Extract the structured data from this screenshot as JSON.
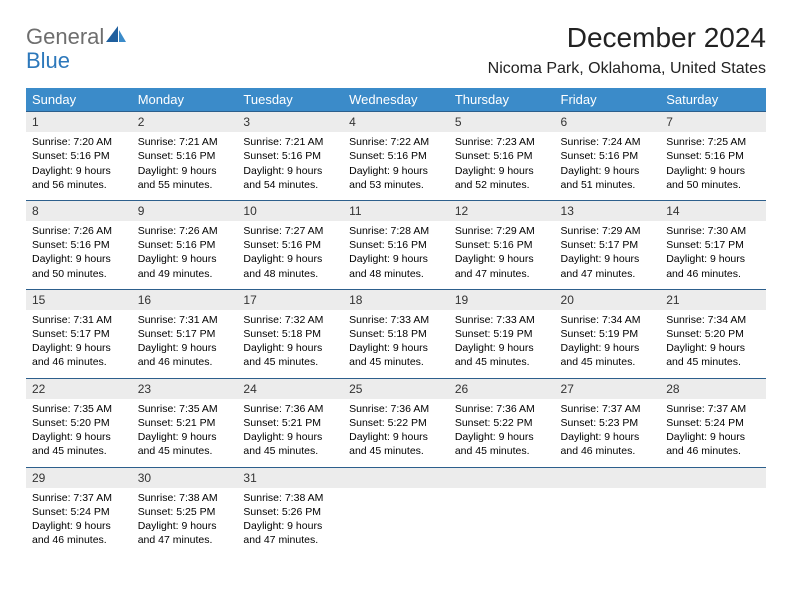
{
  "brand": {
    "part1": "General",
    "part2": "Blue"
  },
  "title": "December 2024",
  "location": "Nicoma Park, Oklahoma, United States",
  "colors": {
    "header_bg": "#3b8bc9",
    "row_rule": "#2d5f8c",
    "daynum_bg": "#ececec",
    "logo_gray": "#6e6e6e",
    "logo_blue": "#2d78bb"
  },
  "weekdays": [
    "Sunday",
    "Monday",
    "Tuesday",
    "Wednesday",
    "Thursday",
    "Friday",
    "Saturday"
  ],
  "weeks": [
    [
      {
        "n": "1",
        "sr": "Sunrise: 7:20 AM",
        "ss": "Sunset: 5:16 PM",
        "d1": "Daylight: 9 hours",
        "d2": "and 56 minutes."
      },
      {
        "n": "2",
        "sr": "Sunrise: 7:21 AM",
        "ss": "Sunset: 5:16 PM",
        "d1": "Daylight: 9 hours",
        "d2": "and 55 minutes."
      },
      {
        "n": "3",
        "sr": "Sunrise: 7:21 AM",
        "ss": "Sunset: 5:16 PM",
        "d1": "Daylight: 9 hours",
        "d2": "and 54 minutes."
      },
      {
        "n": "4",
        "sr": "Sunrise: 7:22 AM",
        "ss": "Sunset: 5:16 PM",
        "d1": "Daylight: 9 hours",
        "d2": "and 53 minutes."
      },
      {
        "n": "5",
        "sr": "Sunrise: 7:23 AM",
        "ss": "Sunset: 5:16 PM",
        "d1": "Daylight: 9 hours",
        "d2": "and 52 minutes."
      },
      {
        "n": "6",
        "sr": "Sunrise: 7:24 AM",
        "ss": "Sunset: 5:16 PM",
        "d1": "Daylight: 9 hours",
        "d2": "and 51 minutes."
      },
      {
        "n": "7",
        "sr": "Sunrise: 7:25 AM",
        "ss": "Sunset: 5:16 PM",
        "d1": "Daylight: 9 hours",
        "d2": "and 50 minutes."
      }
    ],
    [
      {
        "n": "8",
        "sr": "Sunrise: 7:26 AM",
        "ss": "Sunset: 5:16 PM",
        "d1": "Daylight: 9 hours",
        "d2": "and 50 minutes."
      },
      {
        "n": "9",
        "sr": "Sunrise: 7:26 AM",
        "ss": "Sunset: 5:16 PM",
        "d1": "Daylight: 9 hours",
        "d2": "and 49 minutes."
      },
      {
        "n": "10",
        "sr": "Sunrise: 7:27 AM",
        "ss": "Sunset: 5:16 PM",
        "d1": "Daylight: 9 hours",
        "d2": "and 48 minutes."
      },
      {
        "n": "11",
        "sr": "Sunrise: 7:28 AM",
        "ss": "Sunset: 5:16 PM",
        "d1": "Daylight: 9 hours",
        "d2": "and 48 minutes."
      },
      {
        "n": "12",
        "sr": "Sunrise: 7:29 AM",
        "ss": "Sunset: 5:16 PM",
        "d1": "Daylight: 9 hours",
        "d2": "and 47 minutes."
      },
      {
        "n": "13",
        "sr": "Sunrise: 7:29 AM",
        "ss": "Sunset: 5:17 PM",
        "d1": "Daylight: 9 hours",
        "d2": "and 47 minutes."
      },
      {
        "n": "14",
        "sr": "Sunrise: 7:30 AM",
        "ss": "Sunset: 5:17 PM",
        "d1": "Daylight: 9 hours",
        "d2": "and 46 minutes."
      }
    ],
    [
      {
        "n": "15",
        "sr": "Sunrise: 7:31 AM",
        "ss": "Sunset: 5:17 PM",
        "d1": "Daylight: 9 hours",
        "d2": "and 46 minutes."
      },
      {
        "n": "16",
        "sr": "Sunrise: 7:31 AM",
        "ss": "Sunset: 5:17 PM",
        "d1": "Daylight: 9 hours",
        "d2": "and 46 minutes."
      },
      {
        "n": "17",
        "sr": "Sunrise: 7:32 AM",
        "ss": "Sunset: 5:18 PM",
        "d1": "Daylight: 9 hours",
        "d2": "and 45 minutes."
      },
      {
        "n": "18",
        "sr": "Sunrise: 7:33 AM",
        "ss": "Sunset: 5:18 PM",
        "d1": "Daylight: 9 hours",
        "d2": "and 45 minutes."
      },
      {
        "n": "19",
        "sr": "Sunrise: 7:33 AM",
        "ss": "Sunset: 5:19 PM",
        "d1": "Daylight: 9 hours",
        "d2": "and 45 minutes."
      },
      {
        "n": "20",
        "sr": "Sunrise: 7:34 AM",
        "ss": "Sunset: 5:19 PM",
        "d1": "Daylight: 9 hours",
        "d2": "and 45 minutes."
      },
      {
        "n": "21",
        "sr": "Sunrise: 7:34 AM",
        "ss": "Sunset: 5:20 PM",
        "d1": "Daylight: 9 hours",
        "d2": "and 45 minutes."
      }
    ],
    [
      {
        "n": "22",
        "sr": "Sunrise: 7:35 AM",
        "ss": "Sunset: 5:20 PM",
        "d1": "Daylight: 9 hours",
        "d2": "and 45 minutes."
      },
      {
        "n": "23",
        "sr": "Sunrise: 7:35 AM",
        "ss": "Sunset: 5:21 PM",
        "d1": "Daylight: 9 hours",
        "d2": "and 45 minutes."
      },
      {
        "n": "24",
        "sr": "Sunrise: 7:36 AM",
        "ss": "Sunset: 5:21 PM",
        "d1": "Daylight: 9 hours",
        "d2": "and 45 minutes."
      },
      {
        "n": "25",
        "sr": "Sunrise: 7:36 AM",
        "ss": "Sunset: 5:22 PM",
        "d1": "Daylight: 9 hours",
        "d2": "and 45 minutes."
      },
      {
        "n": "26",
        "sr": "Sunrise: 7:36 AM",
        "ss": "Sunset: 5:22 PM",
        "d1": "Daylight: 9 hours",
        "d2": "and 45 minutes."
      },
      {
        "n": "27",
        "sr": "Sunrise: 7:37 AM",
        "ss": "Sunset: 5:23 PM",
        "d1": "Daylight: 9 hours",
        "d2": "and 46 minutes."
      },
      {
        "n": "28",
        "sr": "Sunrise: 7:37 AM",
        "ss": "Sunset: 5:24 PM",
        "d1": "Daylight: 9 hours",
        "d2": "and 46 minutes."
      }
    ],
    [
      {
        "n": "29",
        "sr": "Sunrise: 7:37 AM",
        "ss": "Sunset: 5:24 PM",
        "d1": "Daylight: 9 hours",
        "d2": "and 46 minutes."
      },
      {
        "n": "30",
        "sr": "Sunrise: 7:38 AM",
        "ss": "Sunset: 5:25 PM",
        "d1": "Daylight: 9 hours",
        "d2": "and 47 minutes."
      },
      {
        "n": "31",
        "sr": "Sunrise: 7:38 AM",
        "ss": "Sunset: 5:26 PM",
        "d1": "Daylight: 9 hours",
        "d2": "and 47 minutes."
      },
      {
        "n": "",
        "sr": "",
        "ss": "",
        "d1": "",
        "d2": ""
      },
      {
        "n": "",
        "sr": "",
        "ss": "",
        "d1": "",
        "d2": ""
      },
      {
        "n": "",
        "sr": "",
        "ss": "",
        "d1": "",
        "d2": ""
      },
      {
        "n": "",
        "sr": "",
        "ss": "",
        "d1": "",
        "d2": ""
      }
    ]
  ]
}
